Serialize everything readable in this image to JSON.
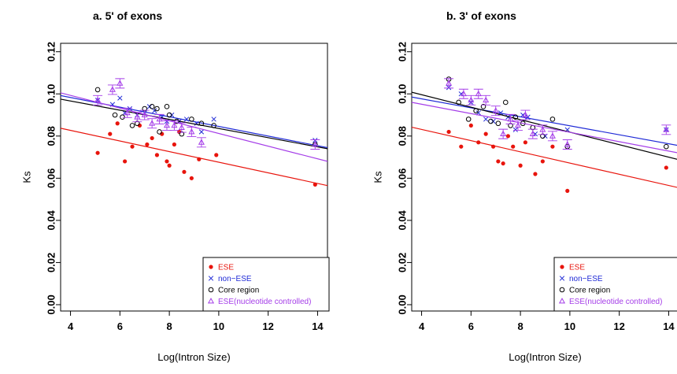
{
  "colors": {
    "ese": "#e8140c",
    "non_ese": "#1f2ad6",
    "core": "#000000",
    "ese_nc": "#a43ce8"
  },
  "chart_data": [
    {
      "type": "scatter",
      "title": "a. 5' of exons",
      "xlabel": "Log(Intron Size)",
      "ylabel": "Ks",
      "xlim": [
        3.6,
        14.4
      ],
      "ylim": [
        -0.003,
        0.124
      ],
      "xticks": [
        "4",
        "6",
        "8",
        "10",
        "12",
        "14"
      ],
      "yticks": [
        "0.00",
        "0.02",
        "0.04",
        "0.06",
        "0.08",
        "0.10",
        "0.12"
      ],
      "legend_position": "bottom-right",
      "legend": [
        "ESE",
        "non−ESE",
        "Core region",
        "ESE(nucleotide controlled)"
      ],
      "series": [
        {
          "name": "ESE",
          "marker": "dot",
          "points": [
            [
              5.1,
              0.072
            ],
            [
              5.6,
              0.081
            ],
            [
              5.9,
              0.086
            ],
            [
              6.2,
              0.068
            ],
            [
              6.5,
              0.075
            ],
            [
              6.8,
              0.085
            ],
            [
              7.1,
              0.076
            ],
            [
              7.3,
              0.079
            ],
            [
              7.5,
              0.071
            ],
            [
              7.7,
              0.081
            ],
            [
              7.9,
              0.068
            ],
            [
              8.0,
              0.066
            ],
            [
              8.2,
              0.076
            ],
            [
              8.4,
              0.082
            ],
            [
              8.6,
              0.063
            ],
            [
              8.9,
              0.06
            ],
            [
              9.2,
              0.069
            ],
            [
              9.9,
              0.071
            ],
            [
              13.9,
              0.057
            ]
          ],
          "fit": [
            [
              3.6,
              0.0837
            ],
            [
              14.4,
              0.0565
            ]
          ]
        },
        {
          "name": "non−ESE",
          "marker": "x",
          "points": [
            [
              5.1,
              0.097
            ],
            [
              5.7,
              0.095
            ],
            [
              6.0,
              0.098
            ],
            [
              6.2,
              0.091
            ],
            [
              6.4,
              0.093
            ],
            [
              6.7,
              0.09
            ],
            [
              7.0,
              0.091
            ],
            [
              7.2,
              0.094
            ],
            [
              7.4,
              0.092
            ],
            [
              7.7,
              0.089
            ],
            [
              7.9,
              0.087
            ],
            [
              8.1,
              0.09
            ],
            [
              8.4,
              0.087
            ],
            [
              8.7,
              0.088
            ],
            [
              9.1,
              0.086
            ],
            [
              9.3,
              0.082
            ],
            [
              9.8,
              0.088
            ],
            [
              13.9,
              0.078
            ]
          ],
          "fit": [
            [
              3.6,
              0.0992
            ],
            [
              14.4,
              0.0745
            ]
          ]
        },
        {
          "name": "Core region",
          "marker": "circle",
          "points": [
            [
              5.1,
              0.102
            ],
            [
              5.8,
              0.09
            ],
            [
              6.1,
              0.089
            ],
            [
              6.5,
              0.085
            ],
            [
              6.7,
              0.086
            ],
            [
              7.0,
              0.093
            ],
            [
              7.3,
              0.094
            ],
            [
              7.5,
              0.093
            ],
            [
              7.6,
              0.082
            ],
            [
              7.9,
              0.094
            ],
            [
              8.0,
              0.09
            ],
            [
              8.3,
              0.087
            ],
            [
              8.5,
              0.081
            ],
            [
              8.9,
              0.088
            ],
            [
              9.3,
              0.086
            ],
            [
              9.8,
              0.085
            ],
            [
              13.9,
              0.076
            ]
          ],
          "fit": [
            [
              3.6,
              0.0975
            ],
            [
              14.4,
              0.074
            ]
          ]
        },
        {
          "name": "ESE(nucleotide controlled)",
          "marker": "triangle",
          "points": [
            [
              5.1,
              0.097
            ],
            [
              5.7,
              0.102
            ],
            [
              6.0,
              0.105
            ],
            [
              6.3,
              0.091
            ],
            [
              6.7,
              0.089
            ],
            [
              7.0,
              0.09
            ],
            [
              7.3,
              0.086
            ],
            [
              7.6,
              0.088
            ],
            [
              7.9,
              0.085
            ],
            [
              8.2,
              0.085
            ],
            [
              8.5,
              0.084
            ],
            [
              8.9,
              0.082
            ],
            [
              9.3,
              0.077
            ],
            [
              13.9,
              0.076
            ]
          ],
          "fit": [
            [
              3.6,
              0.1005
            ],
            [
              14.4,
              0.068
            ]
          ]
        }
      ]
    },
    {
      "type": "scatter",
      "title": "b. 3' of exons",
      "xlabel": "Log(Intron Size)",
      "ylabel": "Ks",
      "xlim": [
        3.6,
        14.4
      ],
      "ylim": [
        -0.003,
        0.124
      ],
      "xticks": [
        "4",
        "6",
        "8",
        "10",
        "12",
        "14"
      ],
      "yticks": [
        "0.00",
        "0.02",
        "0.04",
        "0.06",
        "0.08",
        "0.10",
        "0.12"
      ],
      "legend_position": "bottom-right",
      "legend": [
        "ESE",
        "non−ESE",
        "Core region",
        "ESE(nucleotide controlled)"
      ],
      "series": [
        {
          "name": "ESE",
          "marker": "dot",
          "points": [
            [
              5.1,
              0.082
            ],
            [
              5.6,
              0.075
            ],
            [
              6.0,
              0.085
            ],
            [
              6.3,
              0.077
            ],
            [
              6.6,
              0.081
            ],
            [
              6.9,
              0.075
            ],
            [
              7.1,
              0.068
            ],
            [
              7.3,
              0.067
            ],
            [
              7.5,
              0.08
            ],
            [
              7.7,
              0.075
            ],
            [
              8.0,
              0.066
            ],
            [
              8.2,
              0.077
            ],
            [
              8.6,
              0.062
            ],
            [
              8.9,
              0.068
            ],
            [
              9.3,
              0.075
            ],
            [
              9.9,
              0.054
            ],
            [
              13.9,
              0.065
            ]
          ],
          "fit": [
            [
              3.6,
              0.0842
            ],
            [
              14.4,
              0.0555
            ]
          ]
        },
        {
          "name": "non−ESE",
          "marker": "x",
          "points": [
            [
              5.1,
              0.103
            ],
            [
              5.6,
              0.1
            ],
            [
              6.0,
              0.096
            ],
            [
              6.3,
              0.091
            ],
            [
              6.6,
              0.088
            ],
            [
              6.9,
              0.087
            ],
            [
              7.2,
              0.091
            ],
            [
              7.5,
              0.089
            ],
            [
              7.8,
              0.083
            ],
            [
              8.1,
              0.09
            ],
            [
              8.3,
              0.089
            ],
            [
              8.6,
              0.081
            ],
            [
              9.0,
              0.08
            ],
            [
              9.9,
              0.083
            ],
            [
              13.9,
              0.083
            ]
          ],
          "fit": [
            [
              3.6,
              0.0985
            ],
            [
              14.4,
              0.0755
            ]
          ]
        },
        {
          "name": "Core region",
          "marker": "circle",
          "points": [
            [
              5.1,
              0.107
            ],
            [
              5.5,
              0.096
            ],
            [
              5.9,
              0.088
            ],
            [
              6.2,
              0.092
            ],
            [
              6.5,
              0.094
            ],
            [
              6.8,
              0.087
            ],
            [
              7.1,
              0.086
            ],
            [
              7.4,
              0.096
            ],
            [
              7.6,
              0.085
            ],
            [
              7.8,
              0.089
            ],
            [
              8.1,
              0.086
            ],
            [
              8.5,
              0.084
            ],
            [
              8.9,
              0.08
            ],
            [
              9.3,
              0.088
            ],
            [
              9.9,
              0.075
            ],
            [
              13.9,
              0.075
            ]
          ],
          "fit": [
            [
              3.6,
              0.1008
            ],
            [
              14.4,
              0.0688
            ]
          ]
        },
        {
          "name": "ESE(nucleotide controlled)",
          "marker": "triangle",
          "points": [
            [
              5.1,
              0.105
            ],
            [
              5.7,
              0.1
            ],
            [
              6.0,
              0.097
            ],
            [
              6.3,
              0.1
            ],
            [
              6.6,
              0.097
            ],
            [
              7.0,
              0.092
            ],
            [
              7.3,
              0.081
            ],
            [
              7.6,
              0.088
            ],
            [
              7.9,
              0.085
            ],
            [
              8.2,
              0.09
            ],
            [
              8.5,
              0.081
            ],
            [
              8.9,
              0.083
            ],
            [
              9.3,
              0.08
            ],
            [
              9.9,
              0.076
            ],
            [
              13.9,
              0.083
            ]
          ],
          "fit": [
            [
              3.6,
              0.096
            ],
            [
              14.4,
              0.072
            ]
          ]
        }
      ]
    }
  ]
}
